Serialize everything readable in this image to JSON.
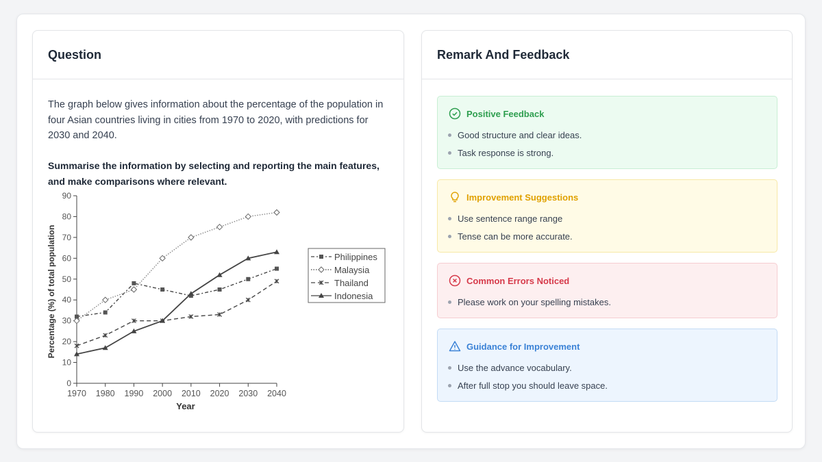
{
  "question": {
    "title": "Question",
    "prompt": "The graph below gives information about the percentage of the population in four Asian countries living in cities from 1970 to 2020, with predictions for 2030 and 2040.",
    "instruction": "Summarise the information by selecting and reporting the main features, and make comparisons where relevant."
  },
  "feedback": {
    "title": "Remark And Feedback",
    "sections": [
      {
        "title": "Positive Feedback",
        "icon": "check-circle-icon",
        "color": "#2e9e4f",
        "items": [
          "Good structure and clear ideas.",
          "Task response is strong."
        ]
      },
      {
        "title": "Improvement Suggestions",
        "icon": "lightbulb-icon",
        "color": "#e0a100",
        "items": [
          "Use sentence range range",
          "Tense can be more accurate."
        ]
      },
      {
        "title": "Common Errors Noticed",
        "icon": "x-circle-icon",
        "color": "#d63a4a",
        "items": [
          "Please work on your spelling mistakes."
        ]
      },
      {
        "title": "Guidance for Improvement",
        "icon": "warning-triangle-icon",
        "color": "#3b82d6",
        "items": [
          "Use the advance vocabulary.",
          "After full stop you should leave space."
        ]
      }
    ]
  },
  "chart_data": {
    "type": "line",
    "xlabel": "Year",
    "ylabel": "Percentage (%) of total population",
    "x": [
      1970,
      1980,
      1990,
      2000,
      2010,
      2020,
      2030,
      2040
    ],
    "ylim": [
      0,
      90
    ],
    "yticks": [
      0,
      10,
      20,
      30,
      40,
      50,
      60,
      70,
      80,
      90
    ],
    "grid": false,
    "legend": "right",
    "series": [
      {
        "name": "Philippines",
        "marker": "square",
        "style": "dash-dot",
        "values": [
          32,
          34,
          48,
          45,
          42,
          45,
          50,
          55
        ]
      },
      {
        "name": "Malaysia",
        "marker": "open-diamond",
        "style": "dotted",
        "values": [
          30,
          40,
          45,
          60,
          70,
          75,
          80,
          82
        ]
      },
      {
        "name": "Thailand",
        "marker": "x",
        "style": "dashed",
        "values": [
          18,
          23,
          30,
          30,
          32,
          33,
          40,
          49
        ]
      },
      {
        "name": "Indonesia",
        "marker": "triangle",
        "style": "solid",
        "values": [
          14,
          17,
          25,
          30,
          43,
          52,
          60,
          63
        ]
      }
    ]
  }
}
